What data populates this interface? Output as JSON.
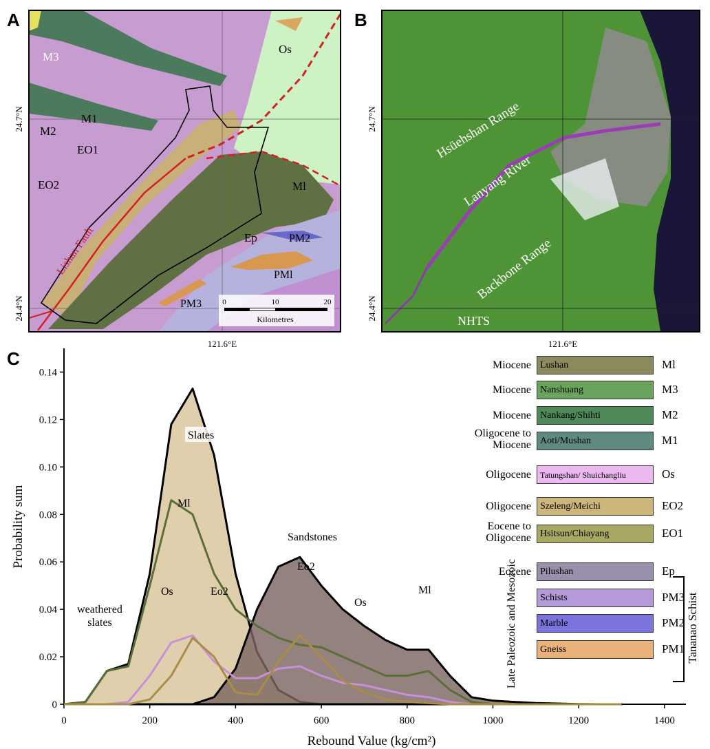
{
  "maps": [
    {
      "panel": "A",
      "lat_labels": [
        "24.7°N",
        "24.4°N"
      ],
      "lon_label": "121.6°E",
      "labels": [
        "Os",
        "M3",
        "M2",
        "M1",
        "EO1",
        "EO2",
        "Ml",
        "Ep",
        "PM2",
        "PMl",
        "PM3"
      ],
      "fault": "Lishan Fault",
      "scale_ticks": [
        0,
        10,
        20
      ],
      "scale_unit": "Kilometres"
    },
    {
      "panel": "B",
      "lat_labels": [
        "24.7°N",
        "24.4°N"
      ],
      "lon_label": "121.6°E",
      "labels": [
        "Hsüehshan Range",
        "Lanyang River",
        "Backbone Range",
        "NHTS"
      ]
    }
  ],
  "chart_data": {
    "type": "line",
    "panel": "C",
    "x_label": "Rebound Value (kg/cm²)",
    "y_label": "Probability sum",
    "x": [
      0,
      50,
      100,
      150,
      200,
      250,
      300,
      350,
      400,
      450,
      500,
      550,
      600,
      650,
      700,
      750,
      800,
      850,
      900,
      950,
      1000,
      1050,
      1100,
      1150,
      1200,
      1250,
      1300
    ],
    "series": [
      {
        "name": "Slates",
        "color": "#000000",
        "fill": "#d9c49a",
        "values": [
          0,
          0.001,
          0.014,
          0.017,
          0.055,
          0.118,
          0.133,
          0.105,
          0.055,
          0.022,
          0.006,
          0.001,
          0,
          0,
          0,
          0,
          0,
          0,
          0,
          0,
          0,
          0,
          0,
          0,
          0,
          0,
          0
        ]
      },
      {
        "name": "Sandstones",
        "color": "#000000",
        "fill": "#7d6662",
        "values": [
          0,
          0,
          0,
          0,
          0,
          0,
          0,
          0.003,
          0.015,
          0.04,
          0.058,
          0.062,
          0.05,
          0.04,
          0.033,
          0.027,
          0.023,
          0.023,
          0.012,
          0.003,
          0.0015,
          0.001,
          0.0005,
          0.0003,
          0.0001,
          0,
          0
        ]
      },
      {
        "name": "Ml",
        "color": "#5a6e3a",
        "values": [
          0,
          0.001,
          0.014,
          0.016,
          0.05,
          0.086,
          0.08,
          0.055,
          0.04,
          0.033,
          0.028,
          0.025,
          0.024,
          0.02,
          0.016,
          0.012,
          0.012,
          0.014,
          0.006,
          0.001,
          0,
          0,
          0,
          0,
          0,
          0,
          0
        ]
      },
      {
        "name": "Os",
        "color": "#c890d8",
        "values": [
          0,
          0,
          0,
          0.001,
          0.012,
          0.026,
          0.029,
          0.018,
          0.011,
          0.011,
          0.015,
          0.016,
          0.012,
          0.009,
          0.008,
          0.006,
          0.004,
          0.003,
          0.001,
          0,
          0,
          0,
          0,
          0,
          0,
          0,
          0
        ]
      },
      {
        "name": "Eo2",
        "color": "#a88c48",
        "values": [
          0,
          0,
          0,
          0,
          0.002,
          0.012,
          0.028,
          0.02,
          0.005,
          0.004,
          0.018,
          0.029,
          0.02,
          0.01,
          0.005,
          0.002,
          0.001,
          0.0005,
          0,
          0,
          0,
          0,
          0,
          0,
          0,
          0,
          0
        ]
      }
    ],
    "annotations": [
      "weathered slates"
    ],
    "xlim": [
      0,
      1450
    ],
    "xticks": [
      0,
      200,
      400,
      600,
      800,
      1000,
      1200,
      1400
    ],
    "ylim": [
      0,
      0.15
    ],
    "yticks": [
      0,
      0.02,
      0.04,
      0.06,
      0.08,
      {
        "value": 0.1,
        "label": "0.10"
      },
      0.12,
      0.14
    ]
  },
  "legend": {
    "rows": [
      {
        "age": "Miocene",
        "name": "Lushan",
        "code": "Ml",
        "color": "#8a8a5c"
      },
      {
        "age": "Miocene",
        "name": "Nanshuang",
        "code": "M3",
        "color": "#6aa35c"
      },
      {
        "age": "Miocene",
        "name": "Nankang/Shihti",
        "code": "M2",
        "color": "#4f8a5a"
      },
      {
        "age": "Oligocene to Miocene",
        "name": "Aoti/Mushan",
        "code": "M1",
        "color": "#5e8a80"
      },
      {
        "age": "Oligocene",
        "name": "Tatungshan/ Shuichangliu",
        "code": "Os",
        "color": "#ecb8f0"
      },
      {
        "age": "Oligocene",
        "name": "Szeleng/Meichi",
        "code": "EO2",
        "color": "#cdb67c"
      },
      {
        "age": "Eocene to Oligocene",
        "name": "Hsitsun/Chiayang",
        "code": "EO1",
        "color": "#a8a862"
      },
      {
        "age": "Eocene",
        "name": "Pilushan",
        "code": "Ep",
        "color": "#9890aa"
      },
      {
        "name": "Schists",
        "code": "PM3",
        "color": "#b49ad8"
      },
      {
        "name": "Marble",
        "code": "PM2",
        "color": "#7c74dc"
      },
      {
        "name": "Gneiss",
        "code": "PM1",
        "color": "#e8b27a"
      }
    ],
    "group": "Late Paleozoic and Mesozoic",
    "unit": "Tananao Schist"
  }
}
